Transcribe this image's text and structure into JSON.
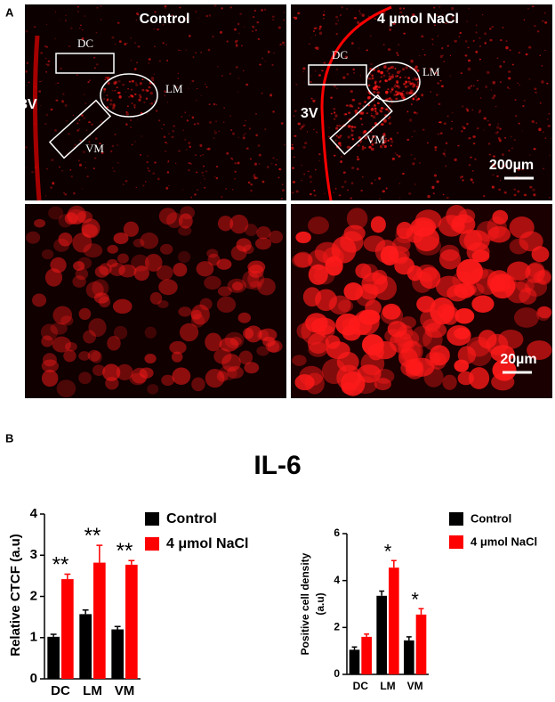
{
  "panel_a": {
    "label": "A",
    "columns": [
      "Control",
      "4 µmol NaCl"
    ],
    "regions": [
      "DC",
      "LM",
      "VM"
    ],
    "ventricle": "3V",
    "scale_bars": [
      "200µm",
      "20µm"
    ]
  },
  "panel_b": {
    "label": "B",
    "title": "IL-6"
  },
  "chart_data": [
    {
      "type": "bar",
      "ylabel": [
        "Relative CTCF (a.u)"
      ],
      "categories": [
        "DC",
        "LM",
        "VM"
      ],
      "ylim": [
        0,
        4
      ],
      "yticks": [
        0,
        1,
        2,
        3,
        4
      ],
      "series": [
        {
          "name": "Control",
          "color": "#000000",
          "values": [
            1.02,
            1.57,
            1.2
          ],
          "errors": [
            0.06,
            0.1,
            0.07
          ]
        },
        {
          "name": "4 μmol NaCl",
          "color": "#ff0000",
          "values": [
            2.42,
            2.82,
            2.77
          ],
          "errors": [
            0.12,
            0.42,
            0.1
          ]
        }
      ],
      "annotations": [
        "**",
        "**",
        "**"
      ]
    },
    {
      "type": "bar",
      "ylabel": [
        "Positive cell density",
        "(a.u)"
      ],
      "categories": [
        "DC",
        "LM",
        "VM"
      ],
      "ylim": [
        0,
        6
      ],
      "yticks": [
        0,
        2,
        4,
        6
      ],
      "series": [
        {
          "name": "Control",
          "color": "#000000",
          "values": [
            1.05,
            3.35,
            1.45
          ],
          "errors": [
            0.12,
            0.2,
            0.15
          ]
        },
        {
          "name": "4 μmol NaCl",
          "color": "#ff0000",
          "values": [
            1.6,
            4.55,
            2.55
          ],
          "errors": [
            0.12,
            0.3,
            0.25
          ]
        }
      ],
      "annotations": [
        null,
        "*",
        "*"
      ]
    }
  ]
}
